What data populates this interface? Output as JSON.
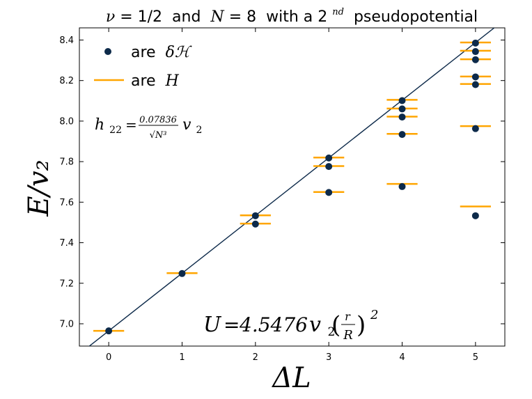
{
  "chart_data": {
    "type": "scatter",
    "title": {
      "nu_label": "ν",
      "nu_eq": "=",
      "nu_value": "1/2",
      "and": " and ",
      "n_label": "N",
      "n_eq": "=",
      "n_value": "8",
      "with": " with a 2",
      "superscript": "nd",
      "rest": " pseudopotential"
    },
    "xlabel": "ΔL",
    "ylabel": "E/v₂",
    "xlim": [
      -0.4,
      5.4
    ],
    "ylim": [
      6.89,
      8.46
    ],
    "x_ticks": [
      0,
      1,
      2,
      3,
      4,
      5
    ],
    "x_tick_labels": [
      "0",
      "1",
      "2",
      "3",
      "4",
      "5"
    ],
    "y_ticks": [
      7.0,
      7.2,
      7.4,
      7.6,
      7.8,
      8.0,
      8.2,
      8.4
    ],
    "y_tick_labels": [
      "7.0",
      "7.2",
      "7.4",
      "7.6",
      "7.8",
      "8.0",
      "8.2",
      "8.4"
    ],
    "legend": {
      "position": "top-left",
      "entries": [
        {
          "prefix": "are ",
          "math": "δℋ",
          "marker": "dot"
        },
        {
          "prefix": "are ",
          "math": "H",
          "marker": "line"
        }
      ]
    },
    "annotations": {
      "h22_lhs": "h",
      "h22_sub": "22",
      "h22_eq": "=",
      "h22_num": "0.07836",
      "h22_den": "√N³",
      "h22_rhs": "v",
      "h22_rhs_sub": "2",
      "u_lhs": "U",
      "u_eq": "=",
      "u_coef": "4.5476",
      "u_v": "v",
      "u_v_sub": "2",
      "u_frac_num": "r",
      "u_frac_den": "R",
      "u_exp": "2"
    },
    "colors": {
      "dot": "#0d2a4a",
      "line_marker": "#ffa500",
      "fit_line": "#0d2a4a"
    },
    "series": [
      {
        "name": "δℋ",
        "points": [
          [
            0,
            6.965
          ],
          [
            1,
            7.248
          ],
          [
            2,
            7.533
          ],
          [
            2,
            7.492
          ],
          [
            3,
            7.818
          ],
          [
            3,
            7.776
          ],
          [
            3,
            7.648
          ],
          [
            4,
            8.101
          ],
          [
            4,
            8.06
          ],
          [
            4,
            8.02
          ],
          [
            4,
            7.934
          ],
          [
            4,
            7.677
          ],
          [
            5,
            8.385
          ],
          [
            5,
            8.343
          ],
          [
            5,
            8.303
          ],
          [
            5,
            8.218
          ],
          [
            5,
            8.18
          ],
          [
            5,
            7.963
          ],
          [
            5,
            7.533
          ]
        ]
      },
      {
        "name": "H",
        "points": [
          [
            0,
            6.965
          ],
          [
            1,
            7.25
          ],
          [
            2,
            7.535
          ],
          [
            2,
            7.494
          ],
          [
            3,
            7.82
          ],
          [
            3,
            7.778
          ],
          [
            3,
            7.65
          ],
          [
            4,
            8.105
          ],
          [
            4,
            8.062
          ],
          [
            4,
            8.022
          ],
          [
            4,
            7.937
          ],
          [
            4,
            7.69
          ],
          [
            5,
            8.388
          ],
          [
            5,
            8.347
          ],
          [
            5,
            8.305
          ],
          [
            5,
            8.22
          ],
          [
            5,
            8.183
          ],
          [
            5,
            7.975
          ],
          [
            5,
            7.579
          ]
        ]
      }
    ],
    "fit_line": {
      "slope": 0.2845,
      "intercept": 6.965,
      "x_range": [
        -0.4,
        5.4
      ]
    }
  }
}
